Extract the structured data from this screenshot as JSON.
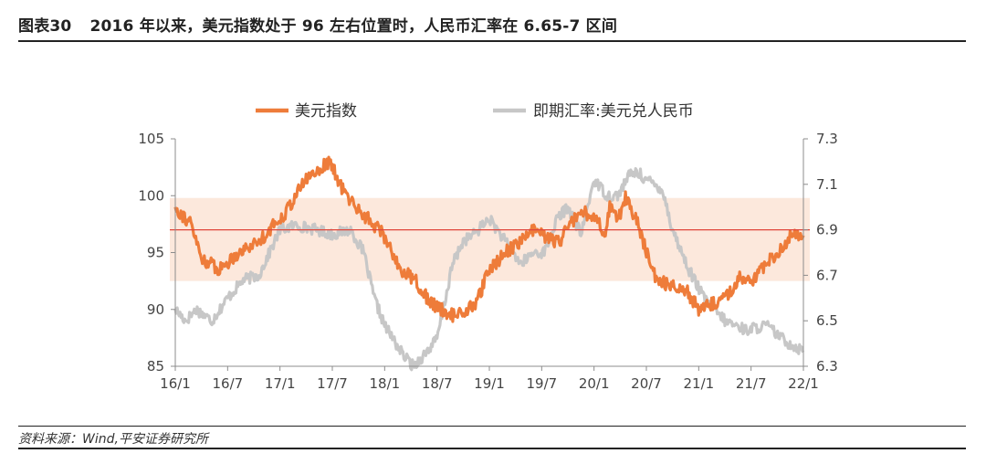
{
  "figure": {
    "number": "图表30",
    "title": "2016 年以来，美元指数处于 96 左右位置时，人民币汇率在 6.65-7 区间",
    "source": "资料来源：Wind,平安证券研究所"
  },
  "colors": {
    "usd_index": "#EE7C3A",
    "cny_rate": "#C7C7C7",
    "band": "#FCE8DC",
    "ref_line": "#E0453A",
    "axis": "#8C8C8C"
  },
  "chart_data": {
    "type": "line",
    "title": "",
    "legend_position": "top",
    "categories": [
      "16/1",
      "16/7",
      "17/1",
      "17/7",
      "18/1",
      "18/7",
      "19/1",
      "19/7",
      "20/1",
      "20/7",
      "21/1",
      "21/7",
      "22/1"
    ],
    "left_axis": {
      "range": [
        85,
        105
      ],
      "ticks": [
        "85",
        "90",
        "95",
        "100",
        "105"
      ]
    },
    "right_axis": {
      "range": [
        6.3,
        7.3
      ],
      "ticks": [
        "6.3",
        "6.5",
        "6.7",
        "6.9",
        "7.1",
        "7.3"
      ]
    },
    "shaded_band": {
      "axis": "left",
      "range": [
        92.5,
        99.8
      ]
    },
    "reference_line": {
      "axis": "left",
      "value": 97
    },
    "series": [
      {
        "name": "美元指数",
        "axis": "left",
        "x": [
          0,
          0.3,
          0.5,
          0.85,
          1.2,
          1.6,
          2.1,
          2.5,
          2.95,
          3.2,
          3.45,
          3.9,
          4.05,
          4.3,
          4.6,
          4.8,
          5.0,
          5.3,
          5.45,
          5.75,
          6.0,
          6.3,
          6.6,
          6.85,
          7.1,
          7.35,
          7.5,
          7.85,
          8.1,
          8.2,
          8.3,
          8.45,
          8.6,
          8.85,
          9.0,
          9.15,
          9.35,
          9.75,
          10.0,
          10.3,
          10.6,
          10.8,
          11.0,
          11.4,
          11.6,
          11.8,
          12.0
        ],
        "values": [
          99.0,
          97.5,
          94.5,
          93.5,
          95.0,
          96.0,
          98.5,
          101.5,
          103.0,
          100.5,
          99.0,
          97.0,
          96.0,
          93.5,
          92.5,
          91.0,
          90.2,
          89.5,
          89.6,
          90.5,
          93.5,
          95.0,
          96.0,
          97.0,
          96.3,
          95.8,
          97.5,
          98.5,
          97.5,
          96.5,
          99.2,
          97.8,
          99.8,
          97.5,
          95.0,
          93.0,
          92.3,
          91.8,
          90.0,
          90.5,
          91.5,
          93.0,
          92.3,
          94.5,
          95.5,
          96.8,
          96.5
        ]
      },
      {
        "name": "即期汇率:美元兑人民币",
        "axis": "right",
        "x": [
          0,
          0.2,
          0.4,
          0.7,
          1.0,
          1.3,
          1.6,
          2.0,
          2.3,
          2.7,
          3.0,
          3.35,
          3.6,
          3.8,
          4.0,
          4.35,
          4.55,
          4.75,
          5.0,
          5.3,
          5.5,
          5.7,
          6.0,
          6.3,
          6.6,
          6.85,
          7.05,
          7.3,
          7.5,
          7.75,
          8.0,
          8.25,
          8.45,
          8.7,
          8.85,
          9.0,
          9.3,
          9.5,
          9.8,
          10.1,
          10.5,
          10.9,
          11.3,
          11.6,
          11.8,
          12.0
        ],
        "values": [
          6.55,
          6.5,
          6.55,
          6.5,
          6.6,
          6.68,
          6.7,
          6.9,
          6.92,
          6.9,
          6.88,
          6.9,
          6.8,
          6.6,
          6.48,
          6.35,
          6.3,
          6.35,
          6.42,
          6.75,
          6.85,
          6.88,
          6.95,
          6.85,
          6.75,
          6.8,
          6.8,
          6.95,
          7.0,
          6.88,
          7.12,
          7.05,
          7.05,
          7.15,
          7.15,
          7.12,
          7.08,
          6.9,
          6.73,
          6.6,
          6.5,
          6.46,
          6.48,
          6.42,
          6.39,
          6.37
        ]
      }
    ]
  }
}
